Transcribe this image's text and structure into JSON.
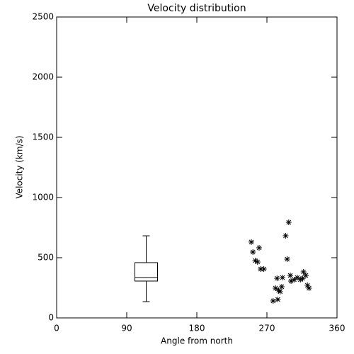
{
  "chart_data": {
    "type": "scatter",
    "title": "Velocity distribution",
    "x_label": "Angle from north",
    "y_label": "Velocity (km/s)",
    "x": [
      250,
      252,
      260,
      255,
      258,
      262,
      266,
      298,
      294,
      296,
      300,
      305,
      301,
      309,
      313,
      317,
      320,
      316,
      322,
      324,
      283,
      290,
      281,
      278,
      284,
      287,
      289,
      285
    ],
    "values": [
      630,
      547,
      582,
      476,
      465,
      406,
      406,
      794,
      682,
      488,
      353,
      318,
      306,
      335,
      318,
      382,
      353,
      329,
      271,
      247,
      329,
      335,
      247,
      141,
      153,
      218,
      259,
      229
    ],
    "color": "#000000",
    "box": {
      "x": 115,
      "min": 135,
      "q1": 306,
      "median": 335,
      "q3": 459,
      "max": 682
    },
    "xlim": [
      0,
      360
    ],
    "xticks": [
      0,
      90,
      180,
      270,
      360
    ],
    "ylim": [
      0,
      2500
    ],
    "yticks": [
      0,
      500,
      1000,
      1500,
      2000,
      2500
    ]
  }
}
